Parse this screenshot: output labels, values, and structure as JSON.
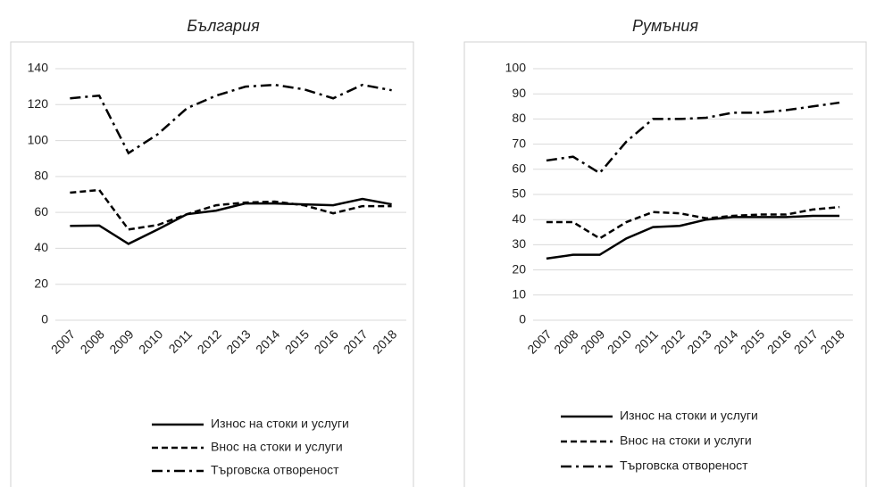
{
  "chart_data": [
    {
      "type": "line",
      "title": "България",
      "categories": [
        "2007",
        "2008",
        "2009",
        "2010",
        "2011",
        "2012",
        "2013",
        "2014",
        "2015",
        "2016",
        "2017",
        "2018"
      ],
      "ylim": [
        0,
        140
      ],
      "yticks": [
        0,
        20,
        40,
        60,
        80,
        100,
        120,
        140
      ],
      "grid": true,
      "legend": "bottom",
      "series": [
        {
          "name": "Износ на стоки и услуги",
          "color": "#000000",
          "dash": "solid",
          "values": [
            52.5,
            52.7,
            42.5,
            50.5,
            59,
            61,
            65,
            65,
            64.5,
            64,
            67.5,
            64.5
          ]
        },
        {
          "name": "Внос на стоки и услуги",
          "color": "#000000",
          "dash": "dash",
          "values": [
            71,
            72.5,
            50.5,
            53,
            59,
            64,
            65.5,
            66,
            64,
            59.5,
            63.5,
            63.5
          ]
        },
        {
          "name": "Търговска отвореност",
          "color": "#000000",
          "dash": "dashdot",
          "values": [
            123.5,
            125,
            93,
            103.5,
            118,
            125,
            130,
            131,
            128.5,
            123.5,
            131,
            128
          ]
        }
      ]
    },
    {
      "type": "line",
      "title": "Румъния",
      "categories": [
        "2007",
        "2008",
        "2009",
        "2010",
        "2011",
        "2012",
        "2013",
        "2014",
        "2015",
        "2016",
        "2017",
        "2018"
      ],
      "ylim": [
        0,
        100
      ],
      "yticks": [
        0,
        10,
        20,
        30,
        40,
        50,
        60,
        70,
        80,
        90,
        100
      ],
      "grid": true,
      "legend": "bottom",
      "series": [
        {
          "name": "Износ на стоки и услуги",
          "color": "#000000",
          "dash": "solid",
          "values": [
            24.5,
            26,
            26,
            32.5,
            37,
            37.5,
            40,
            41,
            41,
            41,
            41.5,
            41.5
          ]
        },
        {
          "name": "Внос на стоки и услуги",
          "color": "#000000",
          "dash": "dash",
          "values": [
            39,
            39,
            32.5,
            39,
            43,
            42.5,
            40.5,
            41.5,
            42,
            42,
            44,
            45
          ]
        },
        {
          "name": "Търговска отвореност",
          "color": "#000000",
          "dash": "dashdot",
          "values": [
            63.5,
            65,
            58.5,
            71,
            80,
            80,
            80.5,
            82.5,
            82.5,
            83.5,
            85,
            86.5
          ]
        }
      ]
    }
  ]
}
